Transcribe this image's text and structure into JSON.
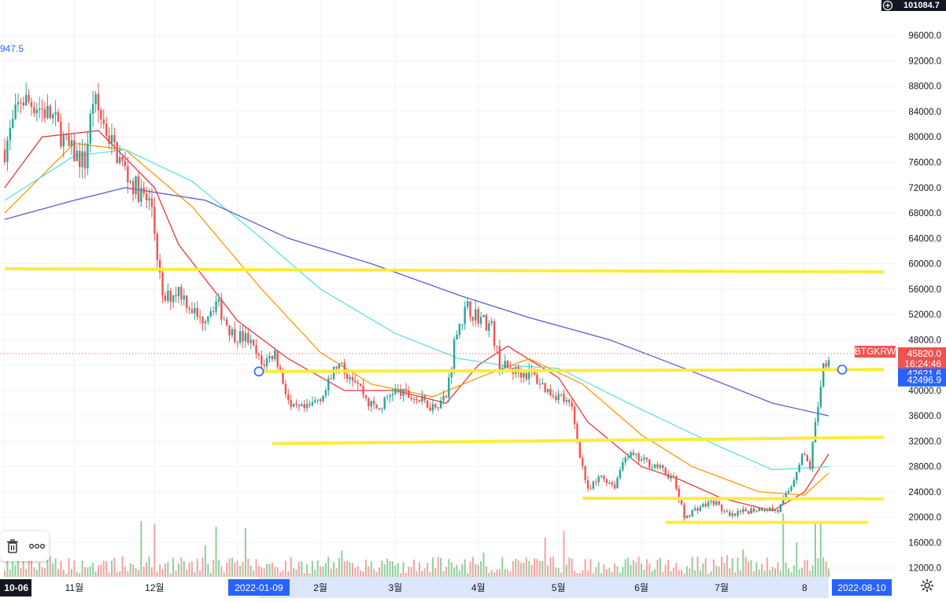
{
  "chart_data": {
    "type": "candlestick",
    "symbol": "BTGKRW",
    "y_axis": {
      "ticks": [
        "96000.0",
        "92000.0",
        "88000.0",
        "84000.0",
        "80000.0",
        "76000.0",
        "72000.0",
        "68000.0",
        "64000.0",
        "60000.0",
        "56000.0",
        "52000.0",
        "48000.0",
        "44000.0",
        "40000.0",
        "36000.0",
        "32000.0",
        "28000.0",
        "24000.0",
        "20000.0",
        "16000.0",
        "12000.0"
      ],
      "tick_values": [
        96000,
        92000,
        88000,
        84000,
        80000,
        76000,
        72000,
        68000,
        64000,
        60000,
        56000,
        52000,
        48000,
        44000,
        40000,
        36000,
        32000,
        28000,
        24000,
        20000,
        16000,
        12000
      ],
      "range": [
        10600,
        101600
      ]
    },
    "x_axis": {
      "labels": [
        "10-06",
        "11월",
        "12월",
        "2",
        "2월",
        "3월",
        "4월",
        "5월",
        "6월",
        "7월",
        "8"
      ],
      "label_dates": [
        "2021-10-06",
        "2021-11-01",
        "2021-12-01",
        "2022-01-01",
        "2022-02-01",
        "2022-03-01",
        "2022-04-01",
        "2022-05-01",
        "2022-06-01",
        "2022-07-01",
        "2022-08-01"
      ],
      "range": [
        "2021-10-06",
        "2022-08-10"
      ],
      "crosshair_start": "2022-01-09",
      "crosshair_end": "2022-08-10"
    },
    "price_tags": {
      "top_readout": "101084.7",
      "high_label": "947.5",
      "last_price": "45820.0",
      "countdown": "16:24:46",
      "level_a": "42621.6",
      "level_b": "42496.9"
    },
    "price_tag_values": {
      "last_price": 45820,
      "level_a": 42621.6,
      "level_b": 42496.9
    },
    "horizontal_lines": [
      {
        "start": "2021-10-06",
        "end": "2022-08-10",
        "values": [
          59200,
          58700
        ]
      },
      {
        "start": "2022-01-09",
        "end": "2022-08-10",
        "values": [
          43000,
          43300
        ]
      },
      {
        "start": "2022-01-14",
        "end": "2022-08-10",
        "values": [
          31600,
          32600
        ]
      },
      {
        "start": "2022-05-10",
        "end": "2022-08-10",
        "values": [
          23000,
          22900
        ]
      },
      {
        "start": "2022-06-10",
        "end": "2022-08-04",
        "values": [
          19200,
          19200
        ]
      }
    ],
    "line_anchors": [
      {
        "date": "2022-01-09",
        "value": 43000
      },
      {
        "date": "2022-08-15",
        "value": 43300
      }
    ],
    "ohlc_keypoints": [
      [
        "2021-10-06",
        78000
      ],
      [
        "2021-10-12",
        86000
      ],
      [
        "2021-10-18",
        85000
      ],
      [
        "2021-10-24",
        83000
      ],
      [
        "2021-10-30",
        78000
      ],
      [
        "2021-11-05",
        76000
      ],
      [
        "2021-11-08",
        86000
      ],
      [
        "2021-11-15",
        79000
      ],
      [
        "2021-11-22",
        73000
      ],
      [
        "2021-11-30",
        69000
      ],
      [
        "2021-12-04",
        54000
      ],
      [
        "2021-12-10",
        56000
      ],
      [
        "2021-12-18",
        51000
      ],
      [
        "2021-12-24",
        54000
      ],
      [
        "2021-12-30",
        49000
      ],
      [
        "2022-01-05",
        48000
      ],
      [
        "2022-01-10",
        44000
      ],
      [
        "2022-01-15",
        46000
      ],
      [
        "2022-01-21",
        37000
      ],
      [
        "2022-01-27",
        37000
      ],
      [
        "2022-02-03",
        40000
      ],
      [
        "2022-02-07",
        44000
      ],
      [
        "2022-02-14",
        42000
      ],
      [
        "2022-02-19",
        38000
      ],
      [
        "2022-02-23",
        37000
      ],
      [
        "2022-02-28",
        40000
      ],
      [
        "2022-03-07",
        39000
      ],
      [
        "2022-03-15",
        37500
      ],
      [
        "2022-03-20",
        39000
      ],
      [
        "2022-03-24",
        50000
      ],
      [
        "2022-03-28",
        53000
      ],
      [
        "2022-04-03",
        51000
      ],
      [
        "2022-04-06",
        50000
      ],
      [
        "2022-04-09",
        44000
      ],
      [
        "2022-04-15",
        43000
      ],
      [
        "2022-04-21",
        42500
      ],
      [
        "2022-04-27",
        40000
      ],
      [
        "2022-05-02",
        39000
      ],
      [
        "2022-05-06",
        37000
      ],
      [
        "2022-05-09",
        30000
      ],
      [
        "2022-05-12",
        24000
      ],
      [
        "2022-05-17",
        26500
      ],
      [
        "2022-05-22",
        25000
      ],
      [
        "2022-05-26",
        30000
      ],
      [
        "2022-06-01",
        29000
      ],
      [
        "2022-06-07",
        28000
      ],
      [
        "2022-06-13",
        26000
      ],
      [
        "2022-06-17",
        20000
      ],
      [
        "2022-06-22",
        21500
      ],
      [
        "2022-06-28",
        22500
      ],
      [
        "2022-07-04",
        20000
      ],
      [
        "2022-07-10",
        21000
      ],
      [
        "2022-07-17",
        21500
      ],
      [
        "2022-07-22",
        21000
      ],
      [
        "2022-07-27",
        25000
      ],
      [
        "2022-07-31",
        30000
      ],
      [
        "2022-08-03",
        28000
      ],
      [
        "2022-08-06",
        38000
      ],
      [
        "2022-08-08",
        44000
      ],
      [
        "2022-08-10",
        45820
      ]
    ],
    "moving_averages": [
      {
        "color": "#e53935",
        "points": [
          [
            "2021-10-06",
            72000
          ],
          [
            "2021-10-20",
            80000
          ],
          [
            "2021-11-10",
            81000
          ],
          [
            "2021-12-01",
            72000
          ],
          [
            "2021-12-10",
            63000
          ],
          [
            "2022-01-01",
            51000
          ],
          [
            "2022-01-20",
            45000
          ],
          [
            "2022-02-10",
            40000
          ],
          [
            "2022-03-01",
            40000
          ],
          [
            "2022-03-20",
            38000
          ],
          [
            "2022-04-01",
            44000
          ],
          [
            "2022-04-12",
            47000
          ],
          [
            "2022-05-01",
            42000
          ],
          [
            "2022-05-12",
            35000
          ],
          [
            "2022-06-01",
            28000
          ],
          [
            "2022-06-15",
            26000
          ],
          [
            "2022-07-01",
            23000
          ],
          [
            "2022-07-20",
            21000
          ],
          [
            "2022-08-01",
            24000
          ],
          [
            "2022-08-10",
            30000
          ]
        ]
      },
      {
        "color": "#ff9800",
        "points": [
          [
            "2021-10-06",
            68000
          ],
          [
            "2021-11-01",
            79000
          ],
          [
            "2021-11-20",
            78000
          ],
          [
            "2021-12-15",
            69000
          ],
          [
            "2022-01-10",
            56000
          ],
          [
            "2022-02-01",
            46000
          ],
          [
            "2022-02-20",
            41000
          ],
          [
            "2022-03-15",
            39000
          ],
          [
            "2022-04-01",
            42000
          ],
          [
            "2022-04-20",
            45000
          ],
          [
            "2022-05-10",
            41000
          ],
          [
            "2022-06-01",
            33000
          ],
          [
            "2022-06-20",
            28000
          ],
          [
            "2022-07-15",
            24000
          ],
          [
            "2022-08-01",
            23500
          ],
          [
            "2022-08-10",
            27000
          ]
        ]
      },
      {
        "color": "#5ce1e6",
        "points": [
          [
            "2021-10-06",
            70000
          ],
          [
            "2021-11-01",
            77000
          ],
          [
            "2021-11-20",
            78000
          ],
          [
            "2021-12-15",
            73000
          ],
          [
            "2022-01-10",
            64000
          ],
          [
            "2022-02-01",
            56000
          ],
          [
            "2022-03-01",
            49000
          ],
          [
            "2022-03-25",
            45000
          ],
          [
            "2022-04-10",
            44000
          ],
          [
            "2022-05-01",
            43500
          ],
          [
            "2022-06-01",
            37000
          ],
          [
            "2022-07-01",
            31000
          ],
          [
            "2022-07-20",
            27500
          ],
          [
            "2022-08-10",
            28000
          ]
        ]
      },
      {
        "color": "#5c5cd6",
        "points": [
          [
            "2021-10-06",
            67000
          ],
          [
            "2021-11-01",
            70000
          ],
          [
            "2021-11-20",
            72000
          ],
          [
            "2021-12-20",
            70000
          ],
          [
            "2022-01-20",
            64000
          ],
          [
            "2022-02-20",
            60000
          ],
          [
            "2022-03-25",
            55000
          ],
          [
            "2022-04-20",
            51500
          ],
          [
            "2022-05-20",
            48000
          ],
          [
            "2022-06-20",
            43000
          ],
          [
            "2022-07-20",
            38000
          ],
          [
            "2022-08-10",
            36000
          ]
        ]
      }
    ]
  },
  "toolbar": {
    "icons": [
      "trash-icon",
      "more-icon"
    ]
  },
  "controls": {
    "settings_icon": "gear-icon"
  },
  "colors": {
    "up": "#26a69a",
    "down": "#ef5350",
    "level_line": "#ffeb3b",
    "price_tag": "#ef5350",
    "level_tag": "#2962ff",
    "axis_text": "#131722",
    "grid": "#f0f3fa"
  }
}
